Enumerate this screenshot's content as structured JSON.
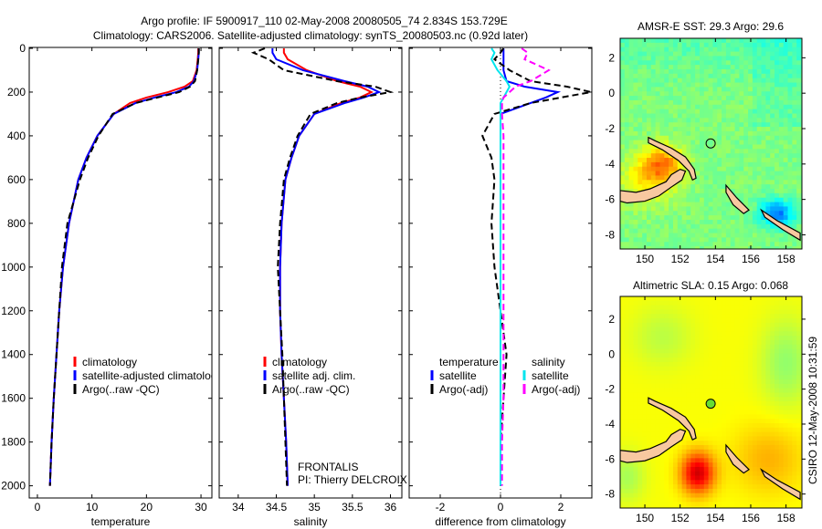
{
  "title_line1": "Argo profile: IF 5900917_110 02-May-2008 20080505_74 2.834S 153.729E",
  "title_line2": "Climatology: CARS2006. Satellite-adjusted climatology: synTS_20080503.nc (0.92d later)",
  "side_stamp": "CSIRO 12-May-2008 10:31:59",
  "colors": {
    "clim": "#ff0000",
    "sat": "#0000ff",
    "argo": "#000000",
    "sat_s": "#00e5ee",
    "argo_s": "#ff00ff",
    "land": "#f8c8a0"
  },
  "chart_data": [
    {
      "type": "line",
      "name": "temperature",
      "xlabel": "temperature",
      "xlim": [
        -1.5,
        32
      ],
      "ylim": [
        0,
        2060
      ],
      "xticks": [
        0,
        10,
        20,
        30
      ],
      "yticks": [
        0,
        200,
        400,
        600,
        800,
        1000,
        1200,
        1400,
        1600,
        1800,
        2000
      ],
      "depth": [
        0,
        20,
        50,
        100,
        150,
        175,
        200,
        225,
        250,
        300,
        400,
        500,
        600,
        800,
        1000,
        1200,
        1400,
        1600,
        1800,
        2000
      ],
      "series": [
        {
          "name": "climatology",
          "color": "clim",
          "dash": false,
          "values": [
            29.5,
            29.5,
            29.4,
            29.2,
            28.5,
            27,
            24,
            20,
            17,
            14,
            11,
            9,
            7.5,
            5.8,
            4.7,
            4,
            3.5,
            3,
            2.6,
            2.3
          ]
        },
        {
          "name": "satellite-adjusted climatology",
          "color": "sat",
          "dash": false,
          "values": [
            29.6,
            29.6,
            29.5,
            29.3,
            28.7,
            27.8,
            25.5,
            21.5,
            18,
            14,
            11,
            9,
            7.5,
            5.8,
            4.7,
            4,
            3.5,
            3,
            2.6,
            2.3
          ]
        },
        {
          "name": "Argo(..raw -QC)",
          "color": "argo",
          "dash": true,
          "values": [
            29.6,
            29.6,
            29.5,
            29.3,
            28.9,
            28,
            26,
            22,
            18,
            13.8,
            11.2,
            9.3,
            7.8,
            5.5,
            4.5,
            4,
            3.5,
            3,
            2.6,
            2.3
          ]
        }
      ],
      "legend": [
        "climatology",
        "satellite-adjusted climatology",
        "Argo(..raw -QC)"
      ]
    },
    {
      "type": "line",
      "name": "salinity",
      "xlabel": "salinity",
      "xlim": [
        33.75,
        36.15
      ],
      "ylim": [
        0,
        2060
      ],
      "xticks": [
        34,
        34.5,
        35,
        35.5,
        36
      ],
      "depth": [
        0,
        20,
        50,
        100,
        150,
        175,
        200,
        225,
        250,
        300,
        400,
        500,
        600,
        800,
        1000,
        1200,
        1400,
        1600,
        1800,
        2000
      ],
      "series": [
        {
          "name": "climatology",
          "color": "clim",
          "dash": false,
          "values": [
            34.6,
            34.6,
            34.65,
            34.9,
            35.3,
            35.6,
            35.75,
            35.6,
            35.35,
            35.0,
            34.8,
            34.7,
            34.62,
            34.57,
            34.55,
            34.55,
            34.57,
            34.6,
            34.63,
            34.65
          ]
        },
        {
          "name": "satellite adj. clim.",
          "color": "sat",
          "dash": false,
          "values": [
            34.45,
            34.45,
            34.5,
            34.85,
            35.4,
            35.7,
            35.85,
            35.65,
            35.4,
            35.0,
            34.8,
            34.7,
            34.62,
            34.57,
            34.55,
            34.55,
            34.57,
            34.6,
            34.63,
            34.65
          ]
        },
        {
          "name": "Argo(..raw -QC)",
          "color": "argo",
          "dash": true,
          "values": [
            34.35,
            34.2,
            34.4,
            34.6,
            35.3,
            35.8,
            36.0,
            35.6,
            35.3,
            34.95,
            34.78,
            34.68,
            34.6,
            34.55,
            34.52,
            34.55,
            34.58,
            34.6,
            34.62,
            34.64
          ]
        }
      ],
      "legend": [
        "climatology",
        "satellite adj. clim.",
        "Argo(..raw -QC)"
      ],
      "annotation": [
        "FRONTALIS",
        "PI: Thierry DELCROIX"
      ]
    },
    {
      "type": "line",
      "name": "difference",
      "xlabel": "difference from climatology",
      "xlim": [
        -3.03,
        3.03
      ],
      "ylim": [
        0,
        2060
      ],
      "xticks": [
        -2,
        0,
        2
      ],
      "depth": [
        0,
        20,
        50,
        100,
        150,
        175,
        200,
        225,
        250,
        300,
        400,
        500,
        600,
        800,
        1000,
        1200,
        1400,
        1600,
        1800,
        2000
      ],
      "series": [
        {
          "name": "temperature satellite",
          "color": "sat",
          "dash": false,
          "values": [
            0.1,
            0.1,
            0.1,
            0.1,
            0.2,
            0.8,
            1.9,
            1.5,
            1.0,
            0,
            0,
            0,
            0,
            0,
            0,
            0,
            0,
            0,
            0,
            0
          ]
        },
        {
          "name": "temperature Argo(-adj)",
          "color": "argo",
          "dash": true,
          "values": [
            0.1,
            0,
            -0.2,
            0.3,
            1.0,
            2.2,
            3.0,
            2.0,
            1.0,
            -0.2,
            -0.6,
            -0.3,
            -0.2,
            -0.3,
            -0.2,
            0,
            0.2,
            0.1,
            0,
            0
          ]
        },
        {
          "name": "salinity satellite",
          "color": "sat_s",
          "dash": false,
          "values": [
            -0.3,
            -0.2,
            -0.3,
            -0.1,
            0.2,
            0.3,
            0.2,
            0.1,
            0,
            0,
            0,
            0,
            0,
            0,
            0,
            0,
            0,
            0,
            0,
            0
          ]
        },
        {
          "name": "salinity Argo(-adj)",
          "color": "argo_s",
          "dash": true,
          "values": [
            0.7,
            0.9,
            0.8,
            1.6,
            1.0,
            0.5,
            0.3,
            0.1,
            0.05,
            0.05,
            0.1,
            0.1,
            0.1,
            0.1,
            0.1,
            0.1,
            0.1,
            0.1,
            0.05,
            0.05
          ]
        }
      ],
      "legend_headers": [
        "temperature",
        "salinity"
      ],
      "legend": [
        "satellite",
        "Argo(-adj)",
        "satellite",
        "Argo(-adj)"
      ]
    },
    {
      "type": "heatmap",
      "name": "sst-map",
      "title": "AMSR-E SST: 29.3 Argo: 29.6",
      "xlim": [
        148.6,
        158.9
      ],
      "ylim": [
        -8.8,
        3.1
      ],
      "xticks": [
        150,
        152,
        154,
        156,
        158
      ],
      "yticks": [
        2,
        0,
        -2,
        -4,
        -6,
        -8
      ],
      "argo_position": [
        153.729,
        -2.834
      ]
    },
    {
      "type": "heatmap",
      "name": "sla-map",
      "title": "Altimetric SLA: 0.15 Argo: 0.068",
      "xlim": [
        148.6,
        158.9
      ],
      "ylim": [
        -8.8,
        3.3
      ],
      "xticks": [
        150,
        152,
        154,
        156,
        158
      ],
      "yticks": [
        2,
        0,
        -2,
        -4,
        -6,
        -8
      ],
      "argo_position": [
        153.729,
        -2.834
      ]
    }
  ],
  "coastlines": [
    [
      [
        148.6,
        -5.5
      ],
      [
        149.5,
        -5.6
      ],
      [
        150.3,
        -5.4
      ],
      [
        151.2,
        -5.0
      ],
      [
        151.5,
        -4.6
      ],
      [
        152.0,
        -4.3
      ],
      [
        152.3,
        -4.4
      ],
      [
        152.1,
        -4.9
      ],
      [
        151.5,
        -5.3
      ],
      [
        150.8,
        -5.8
      ],
      [
        150.0,
        -6.1
      ],
      [
        149.0,
        -6.2
      ],
      [
        148.6,
        -6.1
      ]
    ],
    [
      [
        150.2,
        -2.5
      ],
      [
        150.6,
        -2.7
      ],
      [
        151.5,
        -3.1
      ],
      [
        152.3,
        -3.6
      ],
      [
        152.8,
        -4.3
      ],
      [
        152.9,
        -4.8
      ],
      [
        152.7,
        -4.9
      ],
      [
        152.5,
        -4.4
      ],
      [
        151.9,
        -3.8
      ],
      [
        151.0,
        -3.2
      ],
      [
        150.2,
        -2.8
      ]
    ],
    [
      [
        154.6,
        -5.2
      ],
      [
        155.2,
        -5.9
      ],
      [
        155.9,
        -6.6
      ],
      [
        155.6,
        -6.8
      ],
      [
        155.0,
        -6.3
      ],
      [
        154.6,
        -5.6
      ]
    ],
    [
      [
        156.6,
        -6.6
      ],
      [
        157.5,
        -7.2
      ],
      [
        158.8,
        -7.9
      ],
      [
        158.8,
        -8.3
      ],
      [
        157.8,
        -7.7
      ],
      [
        156.8,
        -7.0
      ]
    ]
  ]
}
